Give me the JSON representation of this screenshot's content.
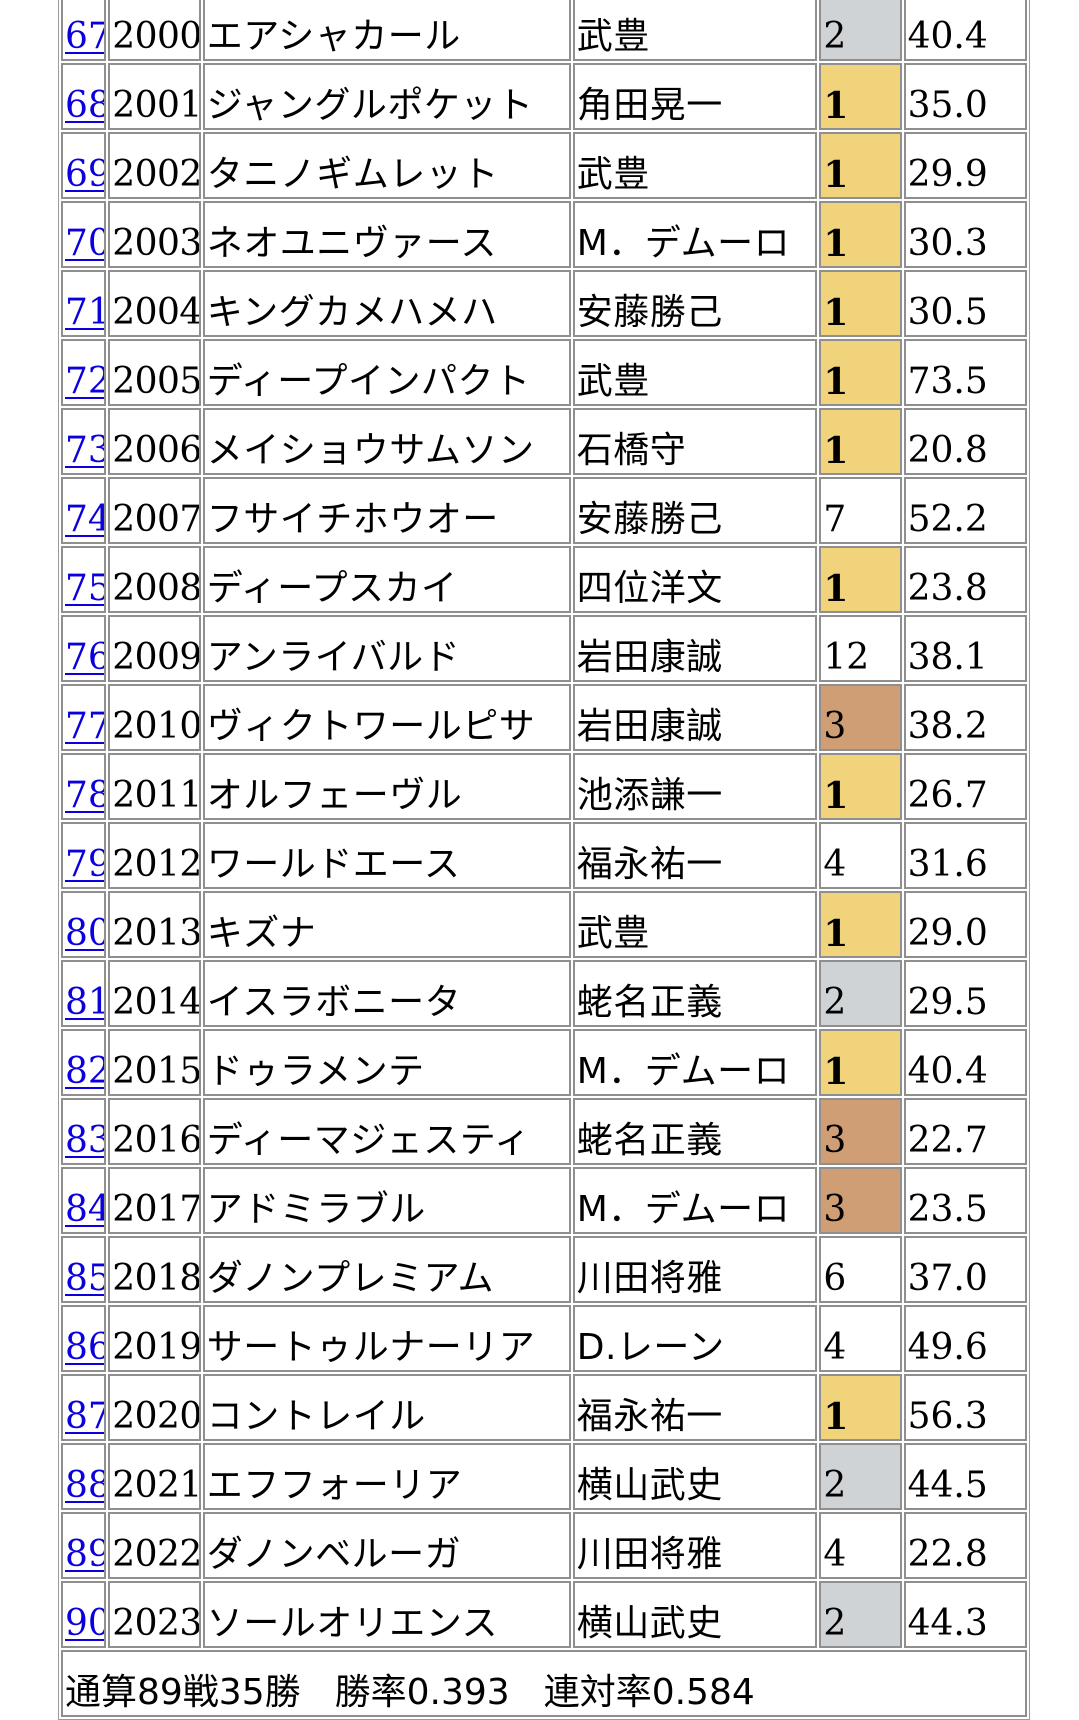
{
  "rows": [
    {
      "no": "67",
      "year": "2000",
      "horse": "エアシャカール",
      "jockey": "武豊",
      "place": "2",
      "odds": "40.4",
      "medal": "silver"
    },
    {
      "no": "68",
      "year": "2001",
      "horse": "ジャングルポケット",
      "jockey": "角田晃一",
      "place": "1",
      "odds": "35.0",
      "medal": "gold"
    },
    {
      "no": "69",
      "year": "2002",
      "horse": "タニノギムレット",
      "jockey": "武豊",
      "place": "1",
      "odds": "29.9",
      "medal": "gold"
    },
    {
      "no": "70",
      "year": "2003",
      "horse": "ネオユニヴァース",
      "jockey": "M．デムーロ",
      "place": "1",
      "odds": "30.3",
      "medal": "gold"
    },
    {
      "no": "71",
      "year": "2004",
      "horse": "キングカメハメハ",
      "jockey": "安藤勝己",
      "place": "1",
      "odds": "30.5",
      "medal": "gold"
    },
    {
      "no": "72",
      "year": "2005",
      "horse": "ディープインパクト",
      "jockey": "武豊",
      "place": "1",
      "odds": "73.5",
      "medal": "gold"
    },
    {
      "no": "73",
      "year": "2006",
      "horse": "メイショウサムソン",
      "jockey": "石橋守",
      "place": "1",
      "odds": "20.8",
      "medal": "gold"
    },
    {
      "no": "74",
      "year": "2007",
      "horse": "フサイチホウオー",
      "jockey": "安藤勝己",
      "place": "7",
      "odds": "52.2",
      "medal": ""
    },
    {
      "no": "75",
      "year": "2008",
      "horse": "ディープスカイ",
      "jockey": "四位洋文",
      "place": "1",
      "odds": "23.8",
      "medal": "gold"
    },
    {
      "no": "76",
      "year": "2009",
      "horse": "アンライバルド",
      "jockey": "岩田康誠",
      "place": "12",
      "odds": "38.1",
      "medal": ""
    },
    {
      "no": "77",
      "year": "2010",
      "horse": "ヴィクトワールピサ",
      "jockey": "岩田康誠",
      "place": "3",
      "odds": "38.2",
      "medal": "bronze"
    },
    {
      "no": "78",
      "year": "2011",
      "horse": "オルフェーヴル",
      "jockey": "池添謙一",
      "place": "1",
      "odds": "26.7",
      "medal": "gold"
    },
    {
      "no": "79",
      "year": "2012",
      "horse": "ワールドエース",
      "jockey": "福永祐一",
      "place": "4",
      "odds": "31.6",
      "medal": ""
    },
    {
      "no": "80",
      "year": "2013",
      "horse": "キズナ",
      "jockey": "武豊",
      "place": "1",
      "odds": "29.0",
      "medal": "gold"
    },
    {
      "no": "81",
      "year": "2014",
      "horse": "イスラボニータ",
      "jockey": "蛯名正義",
      "place": "2",
      "odds": "29.5",
      "medal": "silver"
    },
    {
      "no": "82",
      "year": "2015",
      "horse": "ドゥラメンテ",
      "jockey": "M．デムーロ",
      "place": "1",
      "odds": "40.4",
      "medal": "gold"
    },
    {
      "no": "83",
      "year": "2016",
      "horse": "ディーマジェスティ",
      "jockey": "蛯名正義",
      "place": "3",
      "odds": "22.7",
      "medal": "bronze"
    },
    {
      "no": "84",
      "year": "2017",
      "horse": "アドミラブル",
      "jockey": "M．デムーロ",
      "place": "3",
      "odds": "23.5",
      "medal": "bronze"
    },
    {
      "no": "85",
      "year": "2018",
      "horse": "ダノンプレミアム",
      "jockey": "川田将雅",
      "place": "6",
      "odds": "37.0",
      "medal": ""
    },
    {
      "no": "86",
      "year": "2019",
      "horse": "サートゥルナーリア",
      "jockey": "D.レーン",
      "place": "4",
      "odds": "49.6",
      "medal": ""
    },
    {
      "no": "87",
      "year": "2020",
      "horse": "コントレイル",
      "jockey": "福永祐一",
      "place": "1",
      "odds": "56.3",
      "medal": "gold"
    },
    {
      "no": "88",
      "year": "2021",
      "horse": "エフフォーリア",
      "jockey": "横山武史",
      "place": "2",
      "odds": "44.5",
      "medal": "silver"
    },
    {
      "no": "89",
      "year": "2022",
      "horse": "ダノンベルーガ",
      "jockey": "川田将雅",
      "place": "4",
      "odds": "22.8",
      "medal": ""
    },
    {
      "no": "90",
      "year": "2023",
      "horse": "ソールオリエンス",
      "jockey": "横山武史",
      "place": "2",
      "odds": "44.3",
      "medal": "silver"
    }
  ],
  "summary": {
    "record": "通算89戦35勝",
    "win_rate": "勝率0.393",
    "place_rate": "連対率0.584"
  },
  "colors": {
    "gold": "#f0d37a",
    "silver": "#cfd3d6",
    "bronze": "#cf9e74",
    "link": "#0b00dd"
  }
}
